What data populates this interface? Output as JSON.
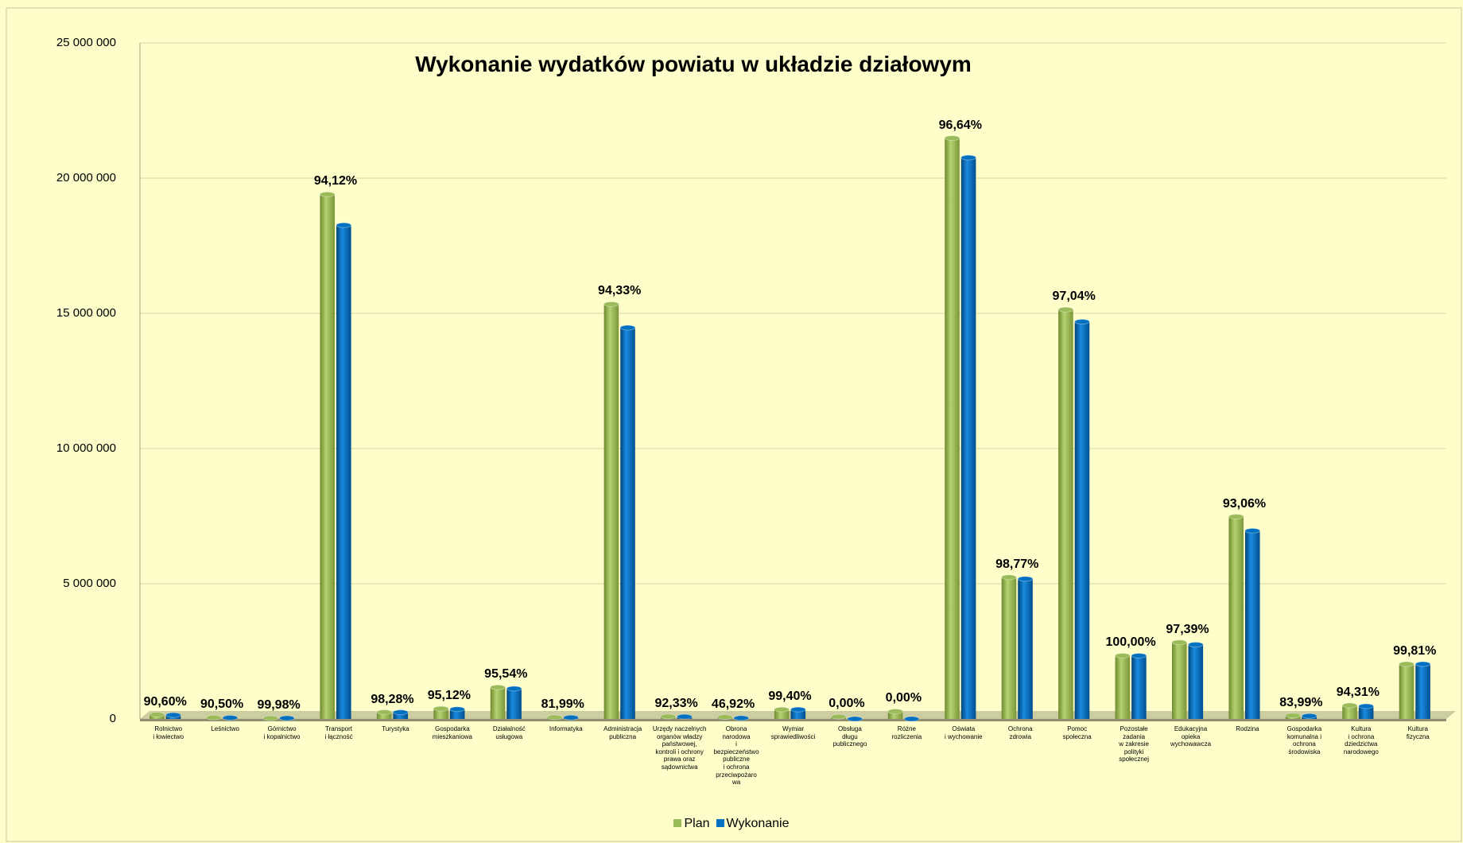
{
  "chart_data": {
    "type": "bar",
    "title": "Wykonanie wydatków powiatu w układzie działowym",
    "categories": [
      "Rolnictwo\ni łowiectwo",
      "Leśnictwo",
      "Górnictwo\ni kopalnictwo",
      "Transport\ni łączność",
      "Turystyka",
      "Gospodarka\nmieszkaniowa",
      "Działalność\nusługowa",
      "Informatyka",
      "Administracja\npubliczna",
      "Urzędy naczelnych\norganów władzy\npaństwowej,\nkontroli i ochrony\nprawa oraz\nsądownictwa",
      "Obrona\nnarodowa\ni\nbezpieczeństwo\npubliczne\ni ochrona\nprzeciwpożaro\nwa",
      "Wymiar\nsprawiedliwości",
      "Obsługa\ndługu\npublicznego",
      "Różne\nrozliczenia",
      "Oświata\ni wychowanie",
      "Ochrona\nzdrowia",
      "Pomoc\nspołeczna",
      "Pozostałe\nzadania\nw zakresie\npolityki\nspołecznej",
      "Edukacyjna\nopieka\nwychowawcza",
      "Rodzina",
      "Gospodarka\nkomunalna i\nochrona\nśrodowiska",
      "Kultura\ni ochrona\ndziedzictwa\nnarodowego",
      "Kultura\nfizyczna"
    ],
    "series": [
      {
        "name": "Plan",
        "color": "#9bbb59",
        "values": [
          160000,
          50000,
          30000,
          19400000,
          250000,
          380000,
          1170000,
          60000,
          15340000,
          90000,
          70000,
          350000,
          80000,
          280000,
          21480000,
          5240000,
          15140000,
          2340000,
          2830000,
          7480000,
          130000,
          500000,
          2030000
        ]
      },
      {
        "name": "Wykonanie",
        "color": "#0070c0",
        "values": [
          145000,
          45000,
          30000,
          18260000,
          245000,
          360000,
          1120000,
          50000,
          14470000,
          83000,
          33000,
          348000,
          0,
          0,
          20760000,
          5180000,
          14690000,
          2340000,
          2750000,
          6960000,
          109000,
          472000,
          2030000
        ]
      }
    ],
    "annotations": [
      "90,60%",
      "90,50%",
      "99,98%",
      "94,12%",
      "98,28%",
      "95,12%",
      "95,54%",
      "81,99%",
      "94,33%",
      "92,33%",
      "46,92%",
      "99,40%",
      "0,00%",
      "0,00%",
      "96,64%",
      "98,77%",
      "97,04%",
      "100,00%",
      "97,39%",
      "93,06%",
      "83,99%",
      "94,31%",
      "99,81%"
    ],
    "ylim": [
      0,
      25000000
    ],
    "yticks": [
      0,
      {
        "value": 5000000,
        "label": "5 000 000"
      },
      {
        "value": 10000000,
        "label": "10 000 000"
      },
      {
        "value": 15000000,
        "label": "15 000 000"
      },
      {
        "value": 20000000,
        "label": "20 000 000"
      },
      {
        "value": 25000000,
        "label": "25 000 000"
      }
    ],
    "grid": true
  }
}
